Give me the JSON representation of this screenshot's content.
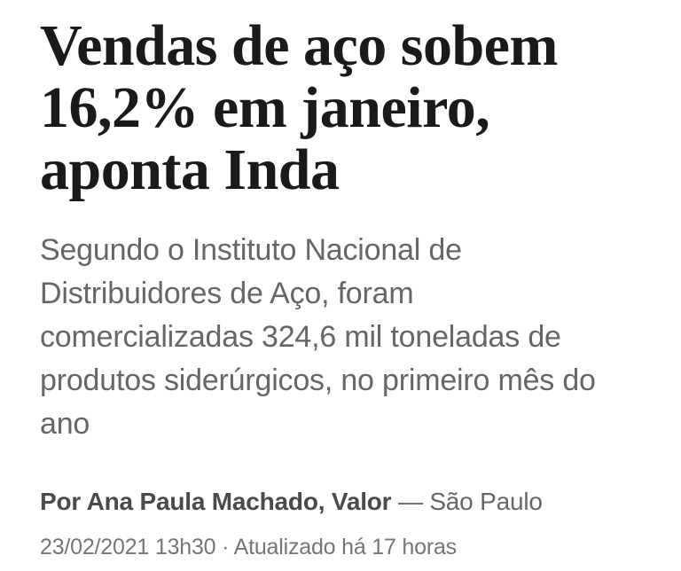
{
  "article": {
    "headline_lines": [
      "Vendas de aço sobem",
      "16,2% em janeiro,",
      "aponta Inda"
    ],
    "subtitle_lines": [
      "Segundo o Instituto Nacional de",
      "Distribuidores de Aço, foram",
      "comercializadas 324,6 mil toneladas de",
      "produtos siderúrgicos, no primeiro mês do",
      "ano"
    ],
    "byline": {
      "author": "Por Ana Paula Machado, Valor",
      "location": " — São Paulo"
    },
    "dateline": "23/02/2021 13h30 · Atualizado há 17 horas"
  },
  "colors": {
    "background": "#ffffff",
    "headline": "#1a1a1a",
    "subtitle": "#666666",
    "byline_author": "#4a4a4a",
    "byline_location": "#666666",
    "dateline": "#757575"
  }
}
